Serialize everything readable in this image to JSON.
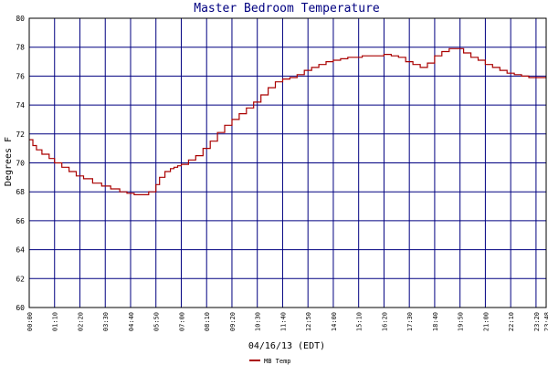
{
  "chart_data": {
    "type": "line",
    "title": "Master Bedroom Temperature",
    "xlabel": "04/16/13 (EDT)",
    "ylabel": "Degrees F",
    "ylim": [
      60,
      80
    ],
    "yticks": [
      "60",
      "62",
      "64",
      "66",
      "68",
      "70",
      "72",
      "74",
      "76",
      "78",
      "80"
    ],
    "xticks": [
      "00:00",
      "01:10",
      "02:20",
      "03:30",
      "04:40",
      "05:50",
      "07:00",
      "08:10",
      "09:20",
      "10:30",
      "11:40",
      "12:50",
      "14:00",
      "15:10",
      "16:20",
      "17:30",
      "18:40",
      "19:50",
      "21:00",
      "22:10",
      "23:20",
      "23:48"
    ],
    "xlim_minutes": [
      0,
      1428
    ],
    "grid": true,
    "legend_position": "bottom-center",
    "series": [
      {
        "name": "MB Temp",
        "color": "#aa0000",
        "x": [
          0,
          10,
          20,
          35,
          55,
          70,
          90,
          110,
          130,
          150,
          175,
          200,
          225,
          250,
          270,
          290,
          310,
          330,
          350,
          360,
          375,
          390,
          400,
          410,
          420,
          440,
          460,
          480,
          500,
          520,
          540,
          560,
          580,
          600,
          620,
          640,
          660,
          680,
          700,
          720,
          740,
          760,
          780,
          800,
          820,
          840,
          860,
          880,
          900,
          920,
          940,
          960,
          980,
          1000,
          1020,
          1040,
          1060,
          1080,
          1100,
          1120,
          1140,
          1160,
          1180,
          1200,
          1220,
          1240,
          1260,
          1280,
          1300,
          1320,
          1340,
          1360,
          1380,
          1400,
          1428
        ],
        "y": [
          71.6,
          71.2,
          70.9,
          70.6,
          70.3,
          70.0,
          69.7,
          69.4,
          69.1,
          68.9,
          68.6,
          68.4,
          68.2,
          68.0,
          67.9,
          67.8,
          67.8,
          68.0,
          68.5,
          69.0,
          69.4,
          69.6,
          69.7,
          69.8,
          69.9,
          70.2,
          70.5,
          71.0,
          71.5,
          72.1,
          72.6,
          73.0,
          73.4,
          73.8,
          74.2,
          74.7,
          75.2,
          75.6,
          75.8,
          75.9,
          76.1,
          76.4,
          76.6,
          76.8,
          77.0,
          77.1,
          77.2,
          77.3,
          77.3,
          77.4,
          77.4,
          77.4,
          77.5,
          77.4,
          77.3,
          77.0,
          76.8,
          76.6,
          76.9,
          77.4,
          77.7,
          77.9,
          77.9,
          77.6,
          77.3,
          77.1,
          76.8,
          76.6,
          76.4,
          76.2,
          76.1,
          76.0,
          75.9,
          75.9,
          75.9
        ]
      }
    ]
  }
}
